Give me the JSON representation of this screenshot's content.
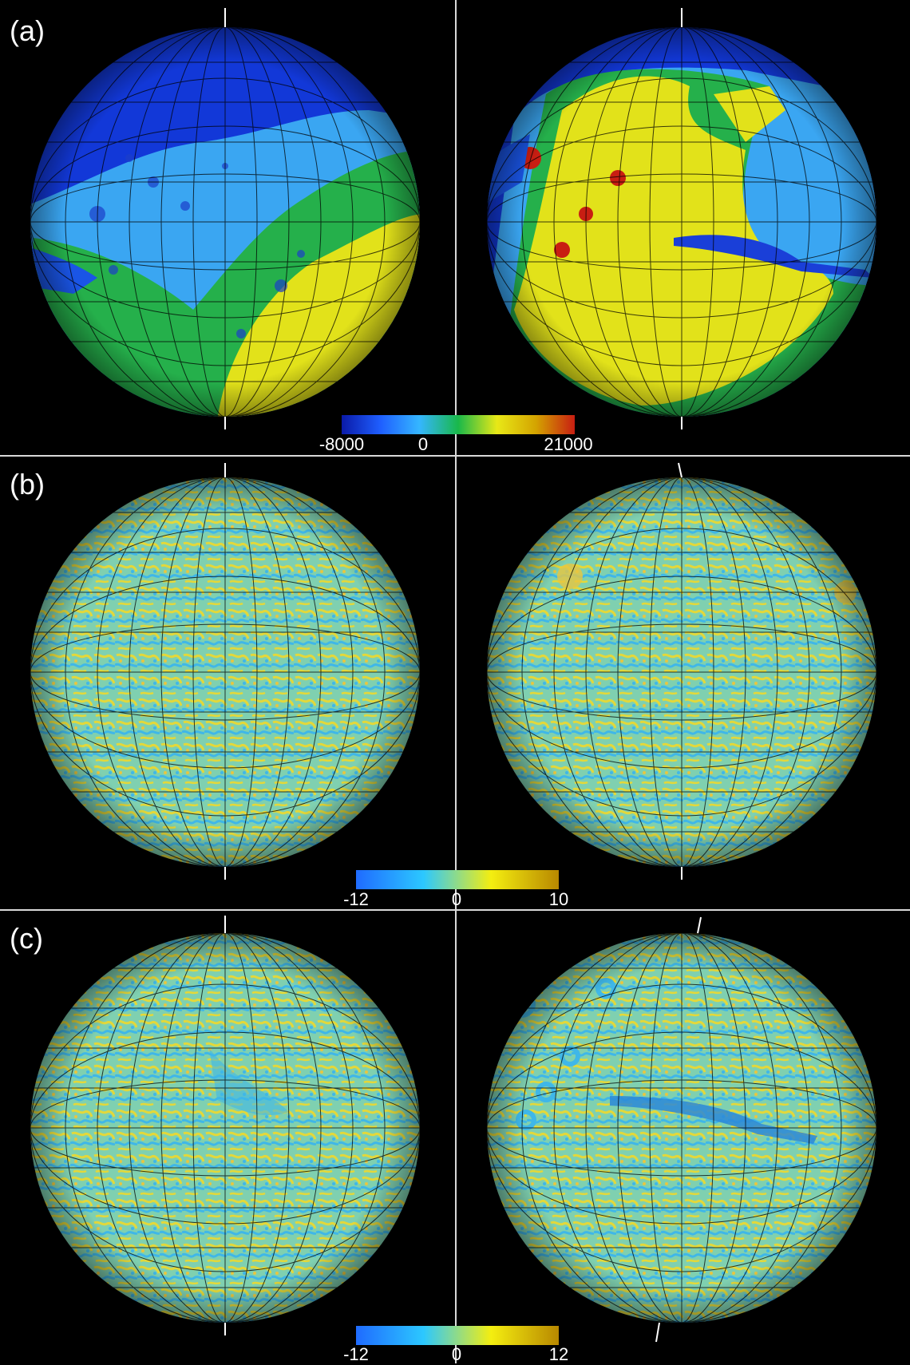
{
  "panels": [
    {
      "label": "(a)",
      "colorbar": {
        "min": "-8000",
        "zero": "0",
        "max": "21000",
        "colors": [
          "#0a1aa8",
          "#1f5fff",
          "#35b6ff",
          "#19b84a",
          "#e8e817",
          "#d4a400",
          "#c81e12"
        ]
      }
    },
    {
      "label": "(b)",
      "colorbar": {
        "min": "-12",
        "zero": "0",
        "max": "10",
        "colors": [
          "#1f6bff",
          "#2cc8ff",
          "#f4ee10",
          "#b88800"
        ]
      }
    },
    {
      "label": "(c)",
      "colorbar": {
        "min": "-12",
        "zero": "0",
        "max": "12",
        "colors": [
          "#1f6bff",
          "#2cc8ff",
          "#f4ee10",
          "#b88800"
        ]
      }
    }
  ]
}
